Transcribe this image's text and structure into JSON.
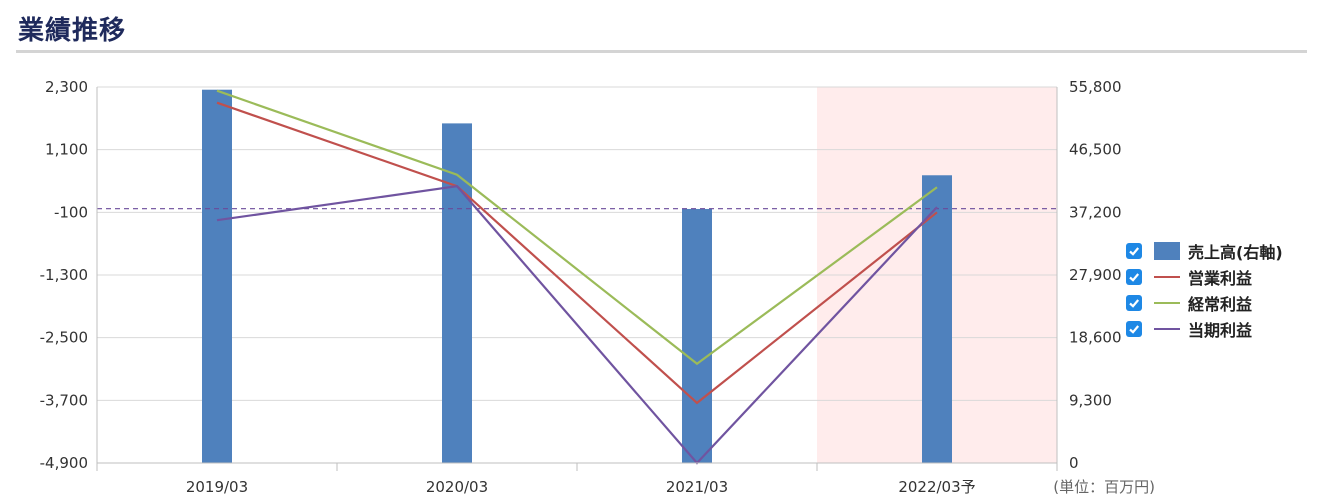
{
  "page": {
    "title": "業績推移"
  },
  "unit_label": "(単位：百万円)",
  "highlight_color": "#ffecec",
  "chart_data": {
    "type": "bar+line",
    "categories": [
      "2019/03",
      "2020/03",
      "2021/03",
      "2022/03予"
    ],
    "forecast_categories": [
      "2022/03予"
    ],
    "left_axis": {
      "ticks": [
        "2,300",
        "1,100",
        "-100",
        "-1,300",
        "-2,500",
        "-3,700",
        "-4,900"
      ],
      "ylim": [
        -4900,
        2300
      ]
    },
    "right_axis": {
      "ticks": [
        "55,800",
        "46,500",
        "37,200",
        "27,900",
        "18,600",
        "9,300",
        "0"
      ],
      "ylim": [
        0,
        55800
      ]
    },
    "bar_series": {
      "name": "売上高(右軸)",
      "axis": "right",
      "color": "#4f81bd",
      "values": [
        55400,
        50400,
        37700,
        42700
      ]
    },
    "line_series": [
      {
        "name": "営業利益",
        "axis": "left",
        "color": "#c0504d",
        "values": [
          2000,
          400,
          -3750,
          -100
        ]
      },
      {
        "name": "経常利益",
        "axis": "left",
        "color": "#9bbb59",
        "values": [
          2230,
          620,
          -3000,
          380
        ]
      },
      {
        "name": "当期利益",
        "axis": "left",
        "color": "#7054a0",
        "values": [
          -250,
          400,
          -4900,
          0
        ]
      }
    ],
    "reference_line": {
      "value": -30,
      "axis": "left",
      "style": "dashed",
      "color": "#6a4a9a"
    },
    "grid": true,
    "legend_position": "right"
  }
}
